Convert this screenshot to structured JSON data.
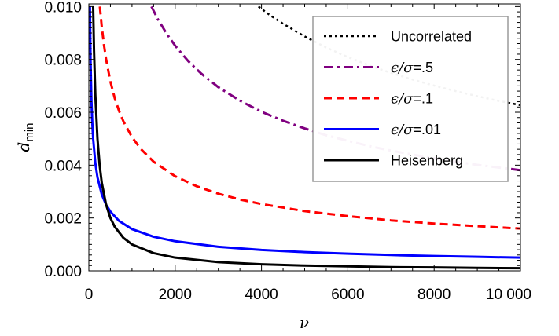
{
  "chart_data": {
    "type": "line",
    "xlabel": "ν",
    "ylabel": {
      "main": "d",
      "sub": "min"
    },
    "xlim": [
      0,
      10000
    ],
    "ylim": [
      0,
      0.0101
    ],
    "x_ticks": [
      0,
      2000,
      4000,
      6000,
      8000,
      10000
    ],
    "x_tick_labels": [
      "0",
      "2000",
      "4000",
      "6000",
      "8000",
      "10 000"
    ],
    "y_ticks": [
      0,
      0.002,
      0.004,
      0.006,
      0.008,
      0.01
    ],
    "y_tick_labels": [
      "0.000",
      "0.002",
      "0.004",
      "0.006",
      "0.008",
      "0.010"
    ],
    "grid": false,
    "legend_position": "top-right",
    "series": [
      {
        "name": "Uncorrelated",
        "legend": {
          "text": "Uncorrelated"
        },
        "color": "#000000",
        "dash": "3,4",
        "width": 2.5,
        "x": [
          3930,
          4200,
          4500,
          5000,
          5500,
          6000,
          6500,
          7000,
          7500,
          8000,
          8500,
          9000,
          9500,
          10000
        ],
        "y": [
          0.01,
          0.00967,
          0.00935,
          0.00887,
          0.00845,
          0.00809,
          0.00777,
          0.00749,
          0.00724,
          0.00701,
          0.0068,
          0.00661,
          0.00643,
          0.00627
        ]
      },
      {
        "name": "ϵ/σ=.5",
        "legend": {
          "pre": "",
          "italic": "ϵ/σ",
          "post": "=.5"
        },
        "color": "#800080",
        "dash": "12,5,3,5",
        "width": 3,
        "x": [
          1450,
          1600,
          1800,
          2000,
          2300,
          2600,
          3000,
          3500,
          4000,
          4500,
          5000,
          5500,
          6000,
          6500,
          7000,
          7500,
          8000,
          8500,
          9000,
          9500,
          10000
        ],
        "y": [
          0.01,
          0.00952,
          0.00898,
          0.00852,
          0.00794,
          0.00747,
          0.00695,
          0.00644,
          0.00602,
          0.00568,
          0.00539,
          0.00513,
          0.00492,
          0.00472,
          0.00455,
          0.0044,
          0.00426,
          0.00413,
          0.00401,
          0.00391,
          0.00381
        ]
      },
      {
        "name": "ϵ/σ=.1",
        "legend": {
          "pre": "",
          "italic": "ϵ/σ",
          "post": "=.1"
        },
        "color": "#ff0000",
        "dash": "10,6",
        "width": 3,
        "x": [
          255,
          300,
          350,
          400,
          500,
          600,
          700,
          800,
          1000,
          1200,
          1500,
          2000,
          2500,
          3000,
          3500,
          4000,
          5000,
          6000,
          7000,
          8000,
          9000,
          10000
        ],
        "y": [
          0.01,
          0.00923,
          0.00855,
          0.008,
          0.00716,
          0.00653,
          0.00605,
          0.00566,
          0.00506,
          0.00462,
          0.00413,
          0.00358,
          0.0032,
          0.00292,
          0.0027,
          0.00253,
          0.00226,
          0.00207,
          0.00191,
          0.00179,
          0.00169,
          0.0016
        ]
      },
      {
        "name": "ϵ/σ=.01",
        "legend": {
          "pre": "",
          "italic": "ϵ/σ",
          "post": "=.01"
        },
        "color": "#0000ff",
        "dash": "",
        "width": 3,
        "x": [
          25,
          40,
          60,
          80,
          100,
          150,
          200,
          300,
          400,
          500,
          700,
          1000,
          1500,
          2000,
          3000,
          4000,
          5000,
          6000,
          7000,
          8000,
          9000,
          10000
        ],
        "y": [
          0.01,
          0.00791,
          0.00645,
          0.00559,
          0.005,
          0.00408,
          0.00354,
          0.00289,
          0.0025,
          0.00224,
          0.00189,
          0.00158,
          0.00129,
          0.00112,
          0.00091,
          0.00079,
          0.00071,
          0.00065,
          0.0006,
          0.00056,
          0.00053,
          0.0005
        ]
      },
      {
        "name": "Heisenberg",
        "legend": {
          "text": "Heisenberg"
        },
        "color": "#000000",
        "dash": "",
        "width": 3,
        "x": [
          100,
          120,
          150,
          200,
          250,
          300,
          400,
          500,
          600,
          800,
          1000,
          1500,
          2000,
          3000,
          4000,
          5000,
          6000,
          7000,
          8000,
          9000,
          10000
        ],
        "y": [
          0.01,
          0.00833,
          0.00667,
          0.005,
          0.004,
          0.00333,
          0.0025,
          0.002,
          0.00167,
          0.00125,
          0.001,
          0.00067,
          0.0005,
          0.00033,
          0.00025,
          0.0002,
          0.00017,
          0.00014,
          0.00013,
          0.00011,
          0.0001
        ]
      }
    ]
  }
}
